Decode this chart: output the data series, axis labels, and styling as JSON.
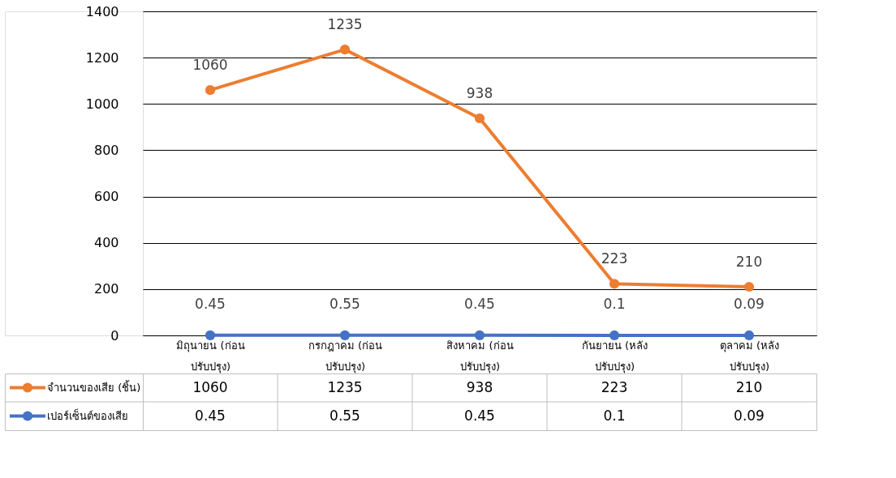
{
  "chart_data": [
    {
      "type": "line",
      "categories": [
        "มิถุนายน (ก่อน ปรับปรุง)",
        "กรกฎาคม (ก่อน ปรับปรุง)",
        "สิงหาคม (ก่อน ปรับปรุง)",
        "กันยายน (หลัง ปรับปรุง)",
        "ตุลาคม (หลัง ปรับปรุง)"
      ],
      "series": [
        {
          "name": "จำนวนของเสีย (ชิ้น)",
          "color": "#ed7d31",
          "values": [
            1060,
            1235,
            938,
            223,
            210
          ],
          "value_labels": [
            "1060",
            "1235",
            "938",
            "223",
            "210"
          ]
        },
        {
          "name": "เปอร์เซ็นต์ของเสีย",
          "color": "#4472c4",
          "values": [
            0.45,
            0.55,
            0.45,
            0.1,
            0.09
          ],
          "value_labels": [
            "0.45",
            "0.55",
            "0.45",
            "0.1",
            "0.09"
          ]
        }
      ],
      "ylim": [
        0,
        1400
      ],
      "yticks": [
        0,
        200,
        400,
        600,
        800,
        1000,
        1200,
        1400
      ],
      "grid": "y",
      "legend": "bottom",
      "marker": "circle"
    },
    {
      "type": "other",
      "annotations": [
        "1060",
        "1235",
        "938",
        "223",
        "210",
        "0.45",
        "0.55",
        "0.45",
        "0.1",
        "0.09"
      ]
    }
  ]
}
